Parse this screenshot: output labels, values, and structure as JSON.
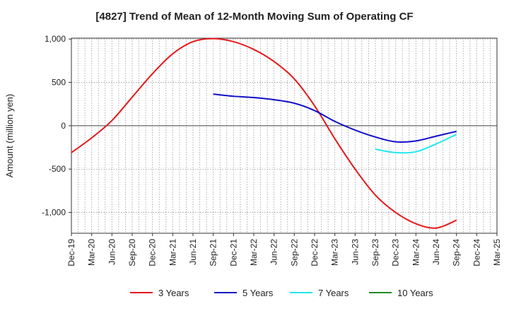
{
  "chart_data": {
    "type": "line",
    "title": "[4827]  Trend of Mean of 12-Month Moving Sum of Operating CF",
    "xlabel": "",
    "ylabel": "Amount (million yen)",
    "ylim": [
      -1240,
      1010
    ],
    "yticks": [
      1000,
      500,
      0,
      -500,
      -1000
    ],
    "ytick_labels": [
      "1,000",
      "500",
      "0",
      "-500",
      "-1,000"
    ],
    "grid": true,
    "legend_position": "bottom",
    "x_categories": [
      "Dec-19",
      "Mar-20",
      "Jun-20",
      "Sep-20",
      "Dec-20",
      "Mar-21",
      "Jun-21",
      "Sep-21",
      "Dec-21",
      "Mar-22",
      "Jun-22",
      "Sep-22",
      "Dec-22",
      "Mar-23",
      "Jun-23",
      "Sep-23",
      "Dec-23",
      "Mar-24",
      "Jun-24",
      "Sep-24",
      "Dec-24",
      "Mar-25"
    ],
    "series": [
      {
        "name": "3 Years",
        "color": "#e31a1c",
        "x_index": [
          0,
          1,
          2,
          3,
          4,
          5,
          6,
          7,
          8,
          9,
          10,
          11,
          12,
          13,
          14,
          15,
          16,
          17,
          18,
          19
        ],
        "values": [
          -310,
          -140,
          60,
          330,
          600,
          830,
          970,
          1005,
          970,
          880,
          740,
          540,
          230,
          -150,
          -500,
          -800,
          -1000,
          -1130,
          -1180,
          -1090
        ]
      },
      {
        "name": "5 Years",
        "color": "#1010c8",
        "x_index": [
          7,
          8,
          9,
          10,
          11,
          12,
          13,
          14,
          15,
          16,
          17,
          18,
          19
        ],
        "values": [
          365,
          340,
          325,
          300,
          260,
          175,
          50,
          -50,
          -130,
          -185,
          -175,
          -120,
          -65
        ]
      },
      {
        "name": "7 Years",
        "color": "#22e8ee",
        "x_index": [
          15,
          16,
          17,
          18,
          19
        ],
        "values": [
          -270,
          -310,
          -300,
          -210,
          -100
        ]
      },
      {
        "name": "10 Years",
        "color": "#228b22",
        "x_index": [],
        "values": []
      }
    ]
  }
}
